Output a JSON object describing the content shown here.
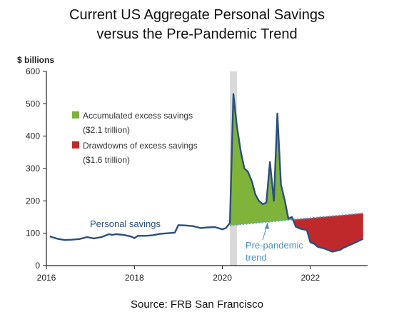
{
  "title_line1": "Current US Aggregate Personal Savings",
  "title_line2": "versus the Pre-Pandemic Trend",
  "source": "Source: FRB San Francisco",
  "colors": {
    "line": "#2a4f7f",
    "excess": "#7fb33a",
    "drawdown": "#c0292b",
    "trend": "#5aa0d0",
    "shade": "#d9d9d9"
  },
  "chart_data": {
    "type": "line",
    "title": "Current US Aggregate Personal Savings versus the Pre-Pandemic Trend",
    "ylabel": "$ billions",
    "xlabel": "",
    "ylim": [
      0,
      600
    ],
    "xlim": [
      2016,
      2023.3
    ],
    "yticks": [
      "0",
      "100",
      "200",
      "300",
      "400",
      "500",
      "600"
    ],
    "xticks": [
      "2016",
      "2018",
      "2020",
      "2022"
    ],
    "grid": false,
    "legend_position": "upper-left",
    "legend": [
      {
        "label": "Accumulated excess savings",
        "sublabel": "($2.1 trillion)",
        "color": "#7fb33a"
      },
      {
        "label": "Drawdowns of excess savings",
        "sublabel": "($1.6 trillion)",
        "color": "#c0292b"
      }
    ],
    "annotations": {
      "personal_savings": "Personal savings",
      "trend_line1": "Pre-pandemic",
      "trend_line2": "trend"
    },
    "shaded_period": [
      2020.17,
      2020.33
    ],
    "series": [
      {
        "name": "Personal savings",
        "x": [
          2016.08,
          2016.25,
          2016.42,
          2016.58,
          2016.75,
          2016.92,
          2017.08,
          2017.25,
          2017.42,
          2017.5,
          2017.58,
          2017.75,
          2017.92,
          2018.0,
          2018.08,
          2018.25,
          2018.42,
          2018.58,
          2018.75,
          2018.92,
          2019.0,
          2019.17,
          2019.33,
          2019.5,
          2019.67,
          2019.83,
          2020.0,
          2020.08,
          2020.17,
          2020.25,
          2020.33,
          2020.42,
          2020.5,
          2020.58,
          2020.67,
          2020.75,
          2020.83,
          2020.92,
          2021.0,
          2021.08,
          2021.17,
          2021.25,
          2021.33,
          2021.42,
          2021.5,
          2021.58,
          2021.67,
          2021.75,
          2021.83,
          2021.92,
          2022.0,
          2022.08,
          2022.17,
          2022.33,
          2022.5,
          2022.67,
          2022.75,
          2022.92,
          2023.08,
          2023.2
        ],
        "y": [
          90,
          83,
          79,
          80,
          82,
          88,
          84,
          88,
          97,
          95,
          97,
          95,
          90,
          85,
          92,
          92,
          94,
          98,
          100,
          102,
          125,
          124,
          122,
          116,
          118,
          119,
          112,
          116,
          132,
          530,
          430,
          350,
          300,
          290,
          260,
          220,
          200,
          190,
          195,
          320,
          200,
          470,
          250,
          200,
          145,
          150,
          120,
          115,
          112,
          110,
          72,
          68,
          58,
          52,
          43,
          48,
          55,
          65,
          75,
          83
        ]
      },
      {
        "name": "Pre-pandemic trend",
        "x": [
          2020.17,
          2023.2
        ],
        "y": [
          124,
          162
        ]
      }
    ]
  }
}
